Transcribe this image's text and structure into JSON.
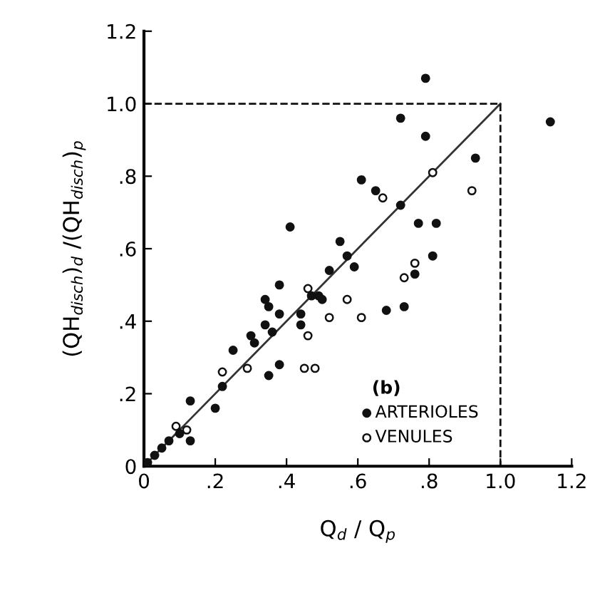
{
  "chart_data": {
    "type": "scatter",
    "xlabel": "Q$_{d}$ / Q$_{p}$",
    "ylabel": "(QH$_{disch}$)$_{d}$ /(QH$_{disch}$)$_{p}$",
    "xlim": [
      0,
      1.2
    ],
    "ylim": [
      0,
      1.2
    ],
    "xticks": [
      0,
      {
        "value": 0.2,
        "label": ".2"
      },
      {
        "value": 0.4,
        "label": ".4"
      },
      {
        "value": 0.6,
        "label": ".6"
      },
      {
        "value": 0.8,
        "label": ".8"
      },
      {
        "value": 1.0,
        "label": "1.0"
      },
      1.2
    ],
    "yticks": [
      0,
      {
        "value": 0.2,
        "label": ".2"
      },
      {
        "value": 0.4,
        "label": ".4"
      },
      {
        "value": 0.6,
        "label": ".6"
      },
      {
        "value": 0.8,
        "label": ".8"
      },
      {
        "value": 1.0,
        "label": "1.0"
      },
      1.2
    ],
    "grid": false,
    "legend": "bottom right",
    "annotations": [
      "(b)"
    ],
    "series": [
      {
        "name": "ARTERIOLES",
        "color": "#111111",
        "marker": "circle",
        "x": [
          0.79,
          1.14,
          0.72,
          0.79,
          0.93,
          0.61,
          0.65,
          0.72,
          0.41,
          0.77,
          0.82,
          0.55,
          0.57,
          0.81,
          0.59,
          0.52,
          0.76,
          0.38,
          0.34,
          0.35,
          0.38,
          0.34,
          0.44,
          0.47,
          0.49,
          0.5,
          0.44,
          0.68,
          0.73,
          0.3,
          0.31,
          0.36,
          0.25,
          0.22,
          0.2,
          0.38,
          0.35,
          0.13,
          0.13,
          0.1,
          0.07,
          0.05,
          0.03,
          0.01
        ],
        "values": [
          1.07,
          0.95,
          0.96,
          0.91,
          0.85,
          0.79,
          0.76,
          0.72,
          0.66,
          0.67,
          0.67,
          0.62,
          0.58,
          0.58,
          0.55,
          0.54,
          0.53,
          0.5,
          0.46,
          0.44,
          0.42,
          0.39,
          0.42,
          0.47,
          0.47,
          0.46,
          0.39,
          0.43,
          0.44,
          0.36,
          0.34,
          0.37,
          0.32,
          0.22,
          0.16,
          0.28,
          0.25,
          0.18,
          0.07,
          0.09,
          0.07,
          0.05,
          0.03,
          0.01
        ]
      },
      {
        "name": "VENULES",
        "color": "#ffffff",
        "marker": "circle",
        "x": [
          0.81,
          0.92,
          0.67,
          0.76,
          0.73,
          0.57,
          0.61,
          0.52,
          0.46,
          0.46,
          0.45,
          0.48,
          0.29,
          0.22,
          0.09,
          0.12
        ],
        "values": [
          0.81,
          0.76,
          0.74,
          0.56,
          0.52,
          0.46,
          0.41,
          0.41,
          0.49,
          0.36,
          0.27,
          0.27,
          0.27,
          0.26,
          0.11,
          0.1
        ]
      },
      {
        "type": "line",
        "color": "#333333",
        "line_style": "solid",
        "marker": "none",
        "x": [
          0,
          1.0
        ],
        "values": [
          0,
          1.0
        ]
      },
      {
        "type": "line",
        "color": "#111111",
        "line_style": "dashed",
        "marker": "none",
        "x": [
          0,
          1.0,
          1.0
        ],
        "values": [
          1.0,
          1.0,
          0
        ]
      }
    ]
  }
}
